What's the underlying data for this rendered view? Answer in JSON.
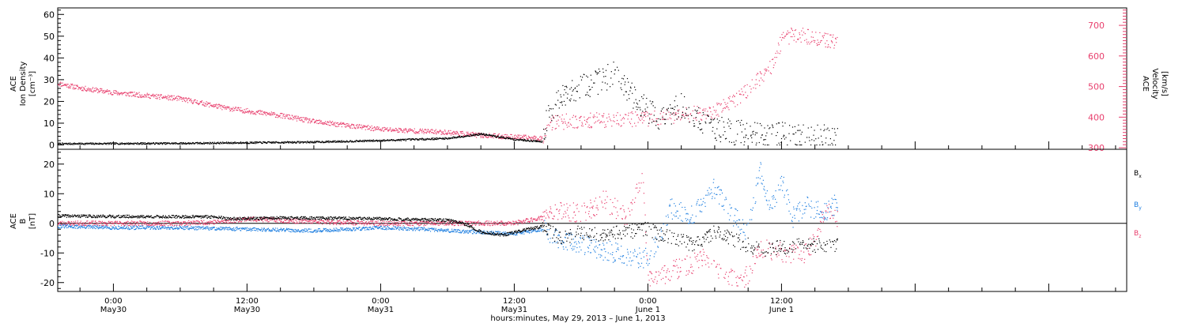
{
  "colors": {
    "density": "#000000",
    "velocity": "#e8406e",
    "bx": "#000000",
    "by": "#1f7fe0",
    "bz": "#e8406e",
    "frame": "#000000"
  },
  "xaxis": {
    "time_range_hours": [
      -5,
      91
    ],
    "title": "hours:minutes, May 29, 2013 – June  1, 2013",
    "ticks": [
      {
        "hours": 0,
        "time": "0:00",
        "date": "May30"
      },
      {
        "hours": 12,
        "time": "12:00",
        "date": "May30"
      },
      {
        "hours": 24,
        "time": "0:00",
        "date": "May31"
      },
      {
        "hours": 36,
        "time": "12:00",
        "date": "May31"
      },
      {
        "hours": 48,
        "time": "0:00",
        "date": "June 1"
      },
      {
        "hours": 60,
        "time": "12:00",
        "date": "June 1"
      }
    ]
  },
  "top_panel": {
    "ylabel_left_lines": [
      "ACE",
      "Ion Density",
      "[cm⁻³]"
    ],
    "ylabel_right_lines": [
      "ACE",
      "Velocity",
      "[km/s]"
    ],
    "left_ticks": [
      0,
      10,
      20,
      30,
      40,
      50,
      60
    ],
    "right_ticks": [
      300,
      400,
      500,
      600,
      700
    ]
  },
  "bottom_panel": {
    "ylabel_lines": [
      "ACE",
      "B",
      "[nT]"
    ],
    "ticks": [
      -20,
      -10,
      0,
      10,
      20
    ],
    "labels": {
      "bx": "Bx",
      "by": "By",
      "bz": "Bz"
    }
  },
  "chart_data": [
    {
      "type": "scatter",
      "title": "",
      "xlabel": "hours:minutes, May 29, 2013 – June  1, 2013",
      "ylabel": "ACE Ion Density [cm-3]",
      "ylabel_right": "ACE Velocity [km/s]",
      "x_units": "hours since 2013-05-30 00:00 UT",
      "xlim": [
        -5,
        91
      ],
      "ylim": [
        -2,
        63
      ],
      "ylim_right": [
        295,
        757
      ],
      "series": [
        {
          "name": "Ion Density",
          "axis": "left",
          "x": [
            -5,
            0,
            6,
            12,
            18,
            24,
            30,
            33,
            36,
            38.5,
            39,
            41,
            43,
            45,
            47,
            49,
            51,
            53,
            55,
            57,
            59,
            61,
            63,
            65
          ],
          "y": [
            0.5,
            0.6,
            0.7,
            1.0,
            1.3,
            2.0,
            3.0,
            5.0,
            2.5,
            1.5,
            15,
            25,
            28,
            33,
            20,
            12,
            18,
            10,
            6,
            5,
            5,
            4,
            4,
            3.5
          ]
        },
        {
          "name": "Velocity",
          "axis": "right",
          "x": [
            -5,
            -3,
            0,
            6,
            10,
            15,
            18,
            24,
            30,
            33,
            36,
            38.5,
            39,
            42,
            45,
            48,
            51,
            54,
            55.5,
            57,
            59,
            60,
            61,
            63,
            65
          ],
          "y": [
            510,
            495,
            480,
            460,
            430,
            405,
            385,
            360,
            350,
            340,
            335,
            330,
            380,
            390,
            390,
            395,
            405,
            420,
            450,
            490,
            560,
            650,
            670,
            660,
            640
          ]
        }
      ]
    },
    {
      "type": "scatter",
      "title": "",
      "xlabel": "hours:minutes, May 29, 2013 – June  1, 2013",
      "ylabel": "ACE B [nT]",
      "x_units": "hours since 2013-05-30 00:00 UT",
      "xlim": [
        -5,
        91
      ],
      "ylim": [
        -23,
        25
      ],
      "series": [
        {
          "name": "Bx",
          "x": [
            -5,
            0,
            5,
            9.5,
            10,
            15,
            20,
            24,
            28,
            30,
            31,
            32,
            33,
            35,
            36,
            38.5,
            40,
            42,
            44,
            46,
            48,
            50,
            52,
            54,
            56,
            58,
            60,
            62,
            64,
            65
          ],
          "y": [
            2.5,
            2.3,
            2.2,
            2.2,
            1.5,
            1.8,
            1.7,
            1.5,
            1.2,
            1.0,
            0.5,
            -1,
            -3,
            -4,
            -3,
            -1,
            -5,
            -3,
            -4,
            -3,
            -2,
            -5,
            -7,
            -3,
            -6,
            -9,
            -8,
            -7,
            -8,
            -7
          ]
        },
        {
          "name": "By",
          "x": [
            -5,
            0,
            6,
            12,
            18,
            24,
            28,
            30,
            33,
            36,
            38.5,
            40,
            42,
            44,
            46,
            48,
            49,
            50,
            52,
            54,
            55,
            57,
            58,
            59,
            60,
            61,
            62,
            64,
            65
          ],
          "y": [
            -1,
            -1.5,
            -1.5,
            -2,
            -2.5,
            -1.5,
            -2,
            -2.5,
            -3,
            -3.5,
            -2,
            -6,
            -7,
            -9,
            -11,
            -12,
            -5,
            5,
            3,
            12,
            5,
            -3,
            18,
            6,
            14,
            2,
            6,
            4,
            7
          ]
        },
        {
          "name": "Bz",
          "x": [
            -5,
            0,
            6,
            9.5,
            12,
            18,
            24,
            30,
            36,
            38.5,
            40,
            42,
            44,
            46,
            47.5,
            48,
            49,
            50,
            51,
            53,
            55,
            56,
            57,
            58,
            60,
            62,
            63,
            64,
            65
          ],
          "y": [
            0,
            0,
            0,
            0.5,
            1.5,
            0.5,
            0,
            0,
            0,
            2,
            5,
            3,
            8,
            2,
            16,
            -20,
            -18,
            -16,
            -15,
            -12,
            -18,
            -20,
            -17,
            -8,
            -10,
            -10,
            -6,
            5,
            2
          ]
        }
      ]
    }
  ]
}
